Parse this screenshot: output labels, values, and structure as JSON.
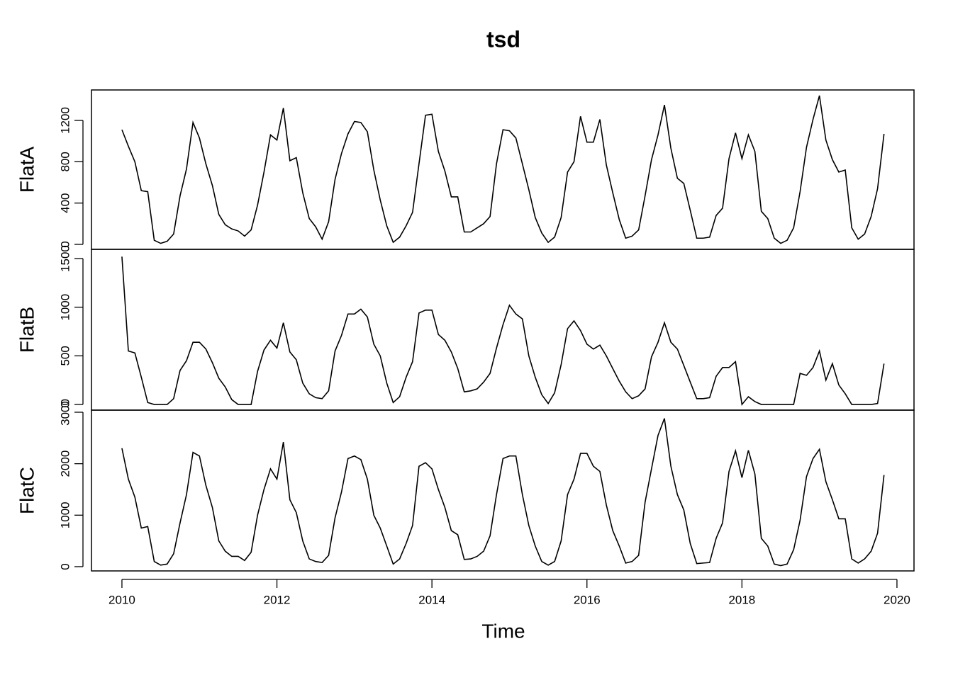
{
  "chart_data": {
    "type": "line",
    "title": "tsd",
    "xlabel": "Time",
    "color": "#000000",
    "xlim": [
      2009.607,
      2020.22
    ],
    "xticks": [
      2010,
      2012,
      2014,
      2016,
      2018,
      2020
    ],
    "x": [
      2010,
      2010.083,
      2010.167,
      2010.25,
      2010.333,
      2010.417,
      2010.5,
      2010.583,
      2010.667,
      2010.75,
      2010.833,
      2010.917,
      2011,
      2011.083,
      2011.167,
      2011.25,
      2011.333,
      2011.417,
      2011.5,
      2011.583,
      2011.667,
      2011.75,
      2011.833,
      2011.917,
      2012,
      2012.083,
      2012.167,
      2012.25,
      2012.333,
      2012.417,
      2012.5,
      2012.583,
      2012.667,
      2012.75,
      2012.833,
      2012.917,
      2013,
      2013.083,
      2013.167,
      2013.25,
      2013.333,
      2013.417,
      2013.5,
      2013.583,
      2013.667,
      2013.75,
      2013.833,
      2013.917,
      2014,
      2014.083,
      2014.167,
      2014.25,
      2014.333,
      2014.417,
      2014.5,
      2014.583,
      2014.667,
      2014.75,
      2014.833,
      2014.917,
      2015,
      2015.083,
      2015.167,
      2015.25,
      2015.333,
      2015.417,
      2015.5,
      2015.583,
      2015.667,
      2015.75,
      2015.833,
      2015.917,
      2016,
      2016.083,
      2016.167,
      2016.25,
      2016.333,
      2016.417,
      2016.5,
      2016.583,
      2016.667,
      2016.75,
      2016.833,
      2016.917,
      2017,
      2017.083,
      2017.167,
      2017.25,
      2017.333,
      2017.417,
      2017.5,
      2017.583,
      2017.667,
      2017.75,
      2017.833,
      2017.917,
      2018,
      2018.083,
      2018.167,
      2018.25,
      2018.333,
      2018.417,
      2018.5,
      2018.583,
      2018.667,
      2018.75,
      2018.833,
      2018.917,
      2019,
      2019.083,
      2019.167,
      2019.25,
      2019.333,
      2019.417,
      2019.5,
      2019.583,
      2019.667,
      2019.75,
      2019.833
    ],
    "panels": [
      {
        "ylabel": "FlatA",
        "ylim": [
          -48,
          1495
        ],
        "yticks": [
          0,
          400,
          800,
          1200
        ],
        "values": [
          1110,
          950,
          800,
          520,
          510,
          40,
          10,
          30,
          100,
          470,
          730,
          1180,
          1030,
          780,
          570,
          290,
          190,
          150,
          130,
          80,
          140,
          380,
          700,
          1060,
          1010,
          1320,
          810,
          840,
          500,
          250,
          170,
          50,
          220,
          630,
          880,
          1070,
          1190,
          1180,
          1090,
          720,
          430,
          180,
          20,
          70,
          180,
          310,
          780,
          1250,
          1260,
          900,
          710,
          460,
          460,
          120,
          120,
          160,
          200,
          270,
          780,
          1110,
          1100,
          1030,
          780,
          530,
          260,
          110,
          20,
          70,
          260,
          700,
          800,
          1240,
          990,
          990,
          1210,
          770,
          500,
          240,
          60,
          80,
          140,
          470,
          820,
          1060,
          1350,
          930,
          640,
          590,
          330,
          60,
          60,
          70,
          280,
          350,
          830,
          1080,
          830,
          1060,
          900,
          320,
          250,
          60,
          10,
          40,
          160,
          510,
          940,
          1210,
          1440,
          1010,
          820,
          700,
          720,
          160,
          50,
          100,
          270,
          540,
          1070
        ]
      },
      {
        "ylabel": "FlatB",
        "ylim": [
          -58,
          1595
        ],
        "yticks": [
          0,
          500,
          1000,
          1500
        ],
        "values": [
          1520,
          550,
          530,
          280,
          20,
          0,
          0,
          0,
          60,
          350,
          450,
          640,
          640,
          570,
          430,
          270,
          180,
          50,
          0,
          0,
          0,
          340,
          560,
          660,
          580,
          840,
          540,
          460,
          220,
          110,
          70,
          60,
          140,
          550,
          710,
          930,
          930,
          980,
          900,
          620,
          500,
          220,
          20,
          80,
          280,
          440,
          940,
          970,
          970,
          720,
          660,
          540,
          370,
          130,
          140,
          160,
          230,
          320,
          580,
          820,
          1020,
          930,
          880,
          500,
          280,
          100,
          10,
          120,
          410,
          780,
          860,
          760,
          620,
          570,
          610,
          500,
          370,
          240,
          130,
          60,
          90,
          160,
          490,
          640,
          840,
          640,
          570,
          400,
          230,
          60,
          60,
          70,
          290,
          380,
          380,
          440,
          0,
          80,
          30,
          0,
          0,
          0,
          0,
          0,
          0,
          320,
          300,
          380,
          550,
          250,
          420,
          200,
          110,
          0,
          0,
          0,
          0,
          10,
          420
        ]
      },
      {
        "ylabel": "FlatC",
        "ylim": [
          -83,
          3041
        ],
        "yticks": [
          0,
          1000,
          2000,
          3000
        ],
        "values": [
          2300,
          1700,
          1350,
          750,
          780,
          100,
          30,
          50,
          250,
          850,
          1400,
          2220,
          2150,
          1580,
          1150,
          500,
          300,
          200,
          200,
          120,
          280,
          1000,
          1500,
          1900,
          1700,
          2420,
          1300,
          1050,
          500,
          150,
          100,
          80,
          220,
          950,
          1450,
          2100,
          2150,
          2080,
          1700,
          1000,
          750,
          400,
          50,
          150,
          450,
          800,
          1950,
          2020,
          1900,
          1500,
          1150,
          700,
          620,
          140,
          150,
          200,
          300,
          600,
          1400,
          2100,
          2150,
          2150,
          1400,
          800,
          400,
          100,
          30,
          100,
          500,
          1400,
          1700,
          2200,
          2200,
          1950,
          1850,
          1200,
          700,
          400,
          70,
          100,
          220,
          1250,
          1900,
          2550,
          2880,
          1950,
          1400,
          1100,
          450,
          60,
          70,
          80,
          550,
          850,
          1850,
          2250,
          1730,
          2260,
          1800,
          550,
          400,
          50,
          20,
          50,
          330,
          900,
          1750,
          2100,
          2280,
          1650,
          1300,
          930,
          930,
          150,
          70,
          150,
          300,
          650,
          1780
        ]
      }
    ]
  }
}
